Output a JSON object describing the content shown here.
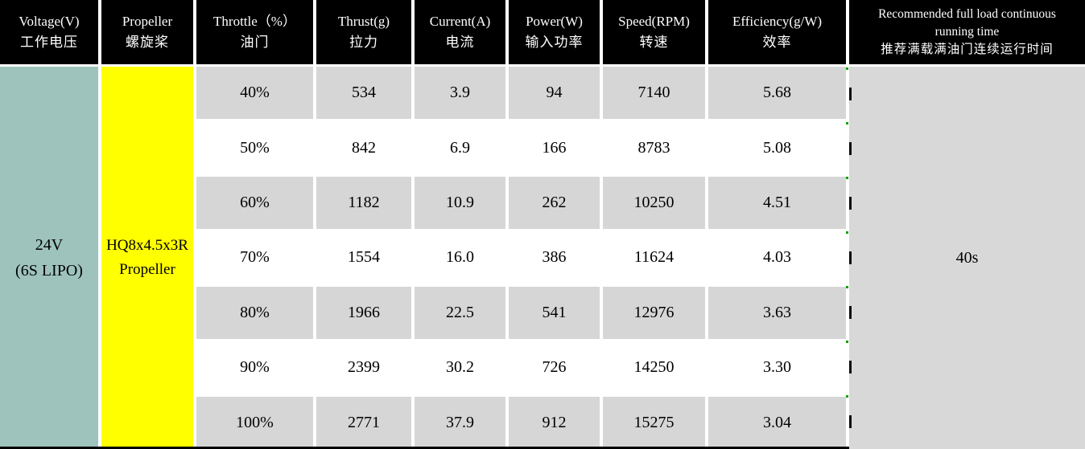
{
  "table": {
    "columns": [
      {
        "en": "Voltage(V)",
        "zh": "工作电压"
      },
      {
        "en": "Propeller",
        "zh": "螺旋桨"
      },
      {
        "en": "Throttle（%）",
        "zh": "油门"
      },
      {
        "en": "Thrust(g)",
        "zh": "拉力"
      },
      {
        "en": "Current(A)",
        "zh": "电流"
      },
      {
        "en": "Power(W)",
        "zh": "输入功率"
      },
      {
        "en": "Speed(RPM)",
        "zh": "转速"
      },
      {
        "en": "Efficiency(g/W)",
        "zh": "效率"
      },
      {
        "en_line1": "Recommended full load  continuous",
        "en_line2": "running time",
        "zh": "推荐满载满油门连续运行时间"
      }
    ],
    "voltage": {
      "line1": "24V",
      "line2": "(6S LIPO)"
    },
    "propeller": {
      "line1": "HQ8x4.5x3R",
      "line2": "Propeller"
    },
    "rows": [
      {
        "throttle": "40%",
        "thrust": "534",
        "current": "3.9",
        "power": "94",
        "speed": "7140",
        "efficiency": "5.68"
      },
      {
        "throttle": "50%",
        "thrust": "842",
        "current": "6.9",
        "power": "166",
        "speed": "8783",
        "efficiency": "5.08"
      },
      {
        "throttle": "60%",
        "thrust": "1182",
        "current": "10.9",
        "power": "262",
        "speed": "10250",
        "efficiency": "4.51"
      },
      {
        "throttle": "70%",
        "thrust": "1554",
        "current": "16.0",
        "power": "386",
        "speed": "11624",
        "efficiency": "4.03"
      },
      {
        "throttle": "80%",
        "thrust": "1966",
        "current": "22.5",
        "power": "541",
        "speed": "12976",
        "efficiency": "3.63"
      },
      {
        "throttle": "90%",
        "thrust": "2399",
        "current": "30.2",
        "power": "726",
        "speed": "14250",
        "efficiency": "3.30"
      },
      {
        "throttle": "100%",
        "thrust": "2771",
        "current": "37.9",
        "power": "912",
        "speed": "15275",
        "efficiency": "3.04"
      }
    ],
    "running_time": "40s"
  },
  "colors": {
    "header_bg": "#000000",
    "header_text": "#ffffff",
    "voltage_bg": "#9dc3bc",
    "propeller_bg": "#ffff00",
    "row_alt_bg": "#d6d6d6",
    "row_bg": "#ffffff",
    "running_bg": "#d8d8d8",
    "marker_green": "#0ca00c"
  }
}
